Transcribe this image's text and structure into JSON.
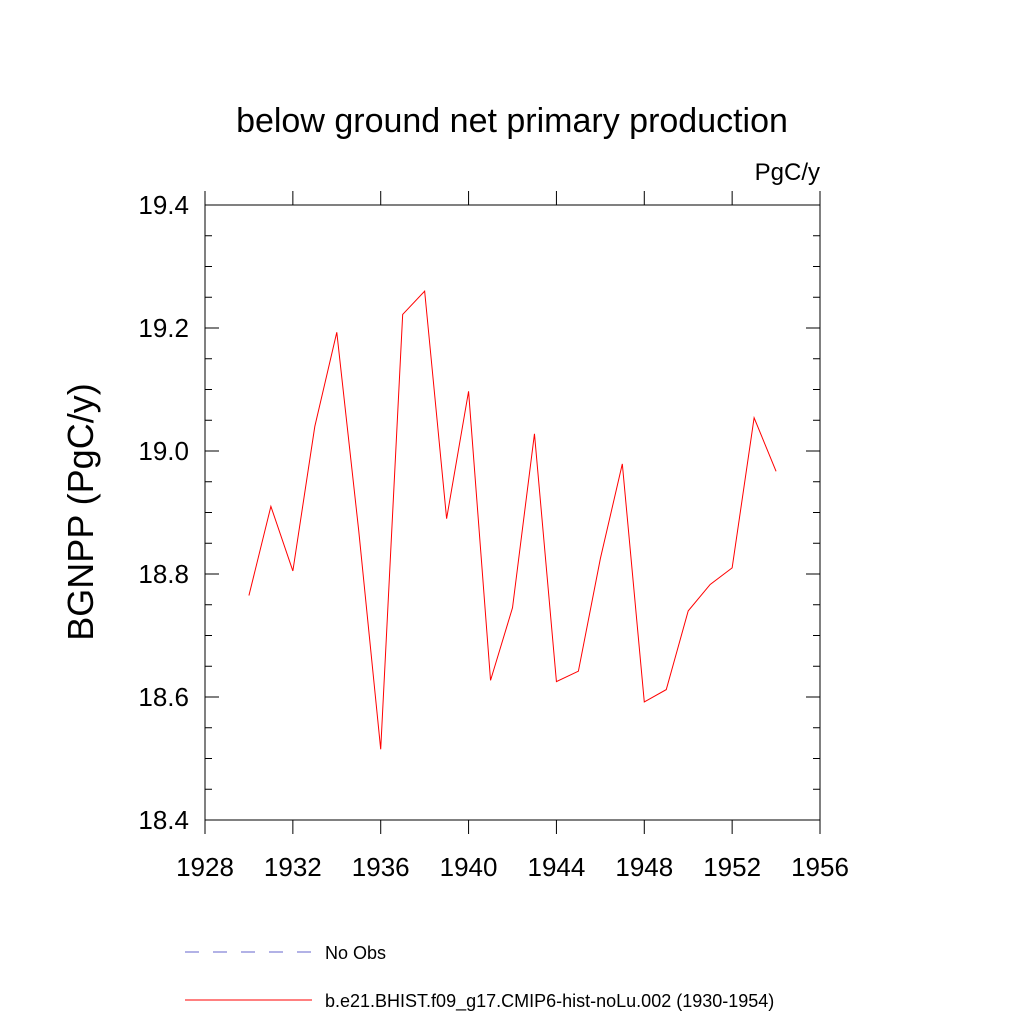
{
  "chart_data": {
    "type": "line",
    "title": "below ground net primary production",
    "units_label": "PgC/y",
    "ylabel": "BGNPP  (PgC/y)",
    "xlabel": "",
    "xlim": [
      1928,
      1956
    ],
    "ylim": [
      18.4,
      19.4
    ],
    "x_ticks": [
      1928,
      1932,
      1936,
      1940,
      1944,
      1948,
      1952,
      1956
    ],
    "y_ticks": [
      18.4,
      18.6,
      18.8,
      19.0,
      19.2,
      19.4
    ],
    "x_tick_labels": [
      "1928",
      "1932",
      "1936",
      "1940",
      "1944",
      "1948",
      "1952",
      "1956"
    ],
    "y_tick_labels": [
      "18.4",
      "18.6",
      "18.8",
      "19.0",
      "19.2",
      "19.4"
    ],
    "grid": false,
    "legend_position": "bottom",
    "series": [
      {
        "name": "No Obs",
        "color": "#6666cc",
        "style": "dashed",
        "x": [],
        "values": []
      },
      {
        "name": "b.e21.BHIST.f09_g17.CMIP6-hist-noLu.002 (1930-1954)",
        "color": "#ff0000",
        "style": "solid",
        "x": [
          1930,
          1931,
          1932,
          1933,
          1934,
          1935,
          1936,
          1937,
          1938,
          1939,
          1940,
          1941,
          1942,
          1943,
          1944,
          1945,
          1946,
          1947,
          1948,
          1949,
          1950,
          1951,
          1952,
          1953,
          1954
        ],
        "values": [
          18.765,
          18.91,
          18.805,
          19.04,
          19.193,
          18.87,
          18.515,
          19.222,
          19.26,
          18.89,
          19.097,
          18.627,
          18.745,
          19.028,
          18.625,
          18.642,
          18.825,
          18.979,
          18.592,
          18.612,
          18.74,
          18.783,
          18.81,
          19.054,
          18.967
        ]
      }
    ]
  }
}
